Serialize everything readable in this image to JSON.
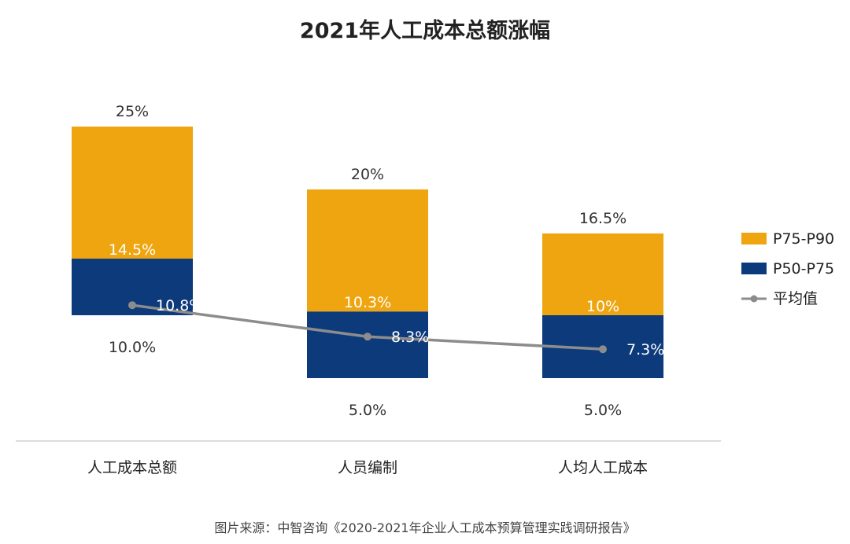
{
  "chart_data": {
    "type": "bar",
    "subtype": "floating-range-with-line",
    "title": "2021年人工成本总额涨幅",
    "categories": [
      "人工成本总额",
      "人员编制",
      "人均人工成本"
    ],
    "series": [
      {
        "name": "P75-P90",
        "color": "#EEA510",
        "low": [
          14.5,
          10.3,
          10
        ],
        "high": [
          25,
          20,
          16.5
        ],
        "labels": [
          "14.5%",
          "10.3%",
          "10%"
        ],
        "top_labels": [
          "25%",
          "20%",
          "16.5%"
        ]
      },
      {
        "name": "P50-P75",
        "color": "#0C3A7B",
        "low": [
          10.0,
          5.0,
          5.0
        ],
        "high": [
          14.5,
          10.3,
          10
        ],
        "labels": [
          "10.0%",
          "5.0%",
          "5.0%"
        ]
      },
      {
        "name": "平均值",
        "type": "line",
        "color": "#8C8C8C",
        "values": [
          10.8,
          8.3,
          7.3
        ],
        "labels": [
          "10.8%",
          "8.3%",
          "7.3%"
        ]
      }
    ],
    "legend": [
      "P75-P90",
      "P50-P75",
      "平均值"
    ],
    "legend_position": "right",
    "ylim": [
      5,
      25
    ],
    "grid": false
  },
  "source": "图片来源：中智咨询《2020-2021年企业人工成本预算管理实践调研报告》"
}
